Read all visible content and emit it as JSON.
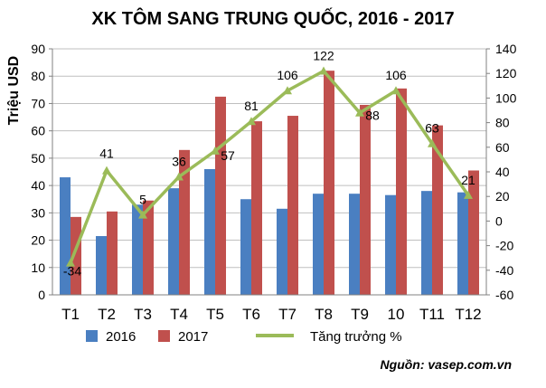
{
  "chart_data": {
    "type": "bar",
    "title": "XK TÔM SANG TRUNG QUỐC, 2016 - 2017",
    "ylabel": "Triệu USD",
    "y2label": "",
    "categories": [
      "T1",
      "T2",
      "T3",
      "T4",
      "T5",
      "T6",
      "T7",
      "T8",
      "T9",
      "10",
      "T11",
      "T12"
    ],
    "series": [
      {
        "name": "2016",
        "axis": "left",
        "type": "bar",
        "color": "#4a7fc1",
        "values": [
          43,
          21.5,
          33,
          39,
          46,
          35,
          31.5,
          37,
          37,
          36.5,
          38,
          37.5
        ]
      },
      {
        "name": "2017",
        "axis": "left",
        "type": "bar",
        "color": "#c0504d",
        "values": [
          28.5,
          30.5,
          34.5,
          53,
          72.5,
          63.5,
          65.5,
          82,
          69.5,
          75.5,
          62,
          45.5
        ]
      },
      {
        "name": "Tăng trưởng %",
        "axis": "right",
        "type": "line",
        "color": "#9bbb59",
        "values": [
          -34,
          41,
          5,
          36,
          57,
          81,
          106,
          122,
          88,
          106,
          63,
          21
        ],
        "labels": [
          "-34",
          "41",
          "5",
          "36",
          "57",
          "81",
          "106",
          "122",
          "88",
          "106",
          "63",
          "21"
        ]
      }
    ],
    "ylim": [
      0,
      90
    ],
    "yticks": [
      "0",
      "10",
      "20",
      "30",
      "40",
      "50",
      "60",
      "70",
      "80",
      "90"
    ],
    "y2lim": [
      -60,
      140
    ],
    "y2ticks": [
      "-60",
      "-40",
      "-20",
      "0",
      "20",
      "40",
      "60",
      "80",
      "100",
      "120",
      "140"
    ],
    "grid": true,
    "legend": "bottom",
    "source": "Nguồn: vasep.com.vn"
  }
}
